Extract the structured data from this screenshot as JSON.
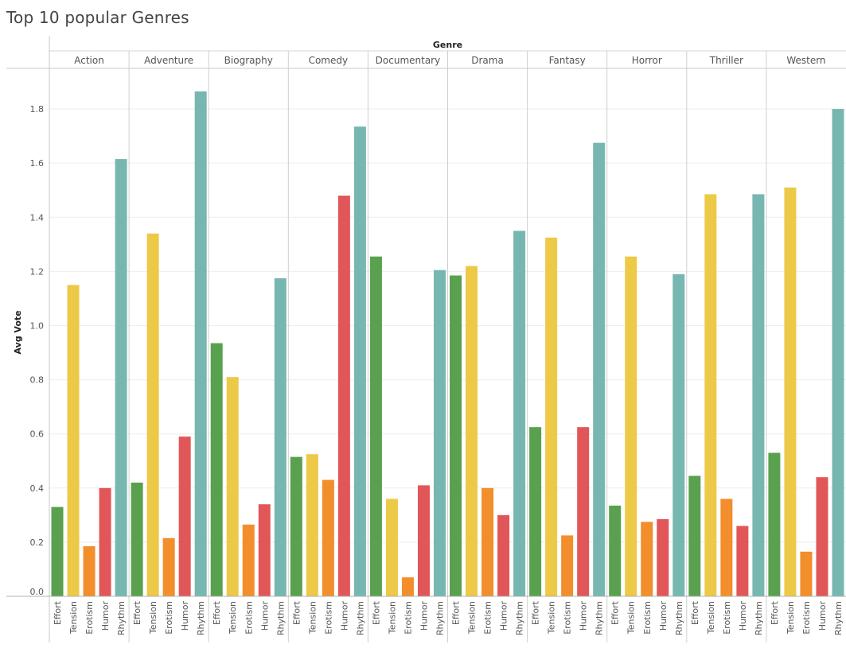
{
  "title": "Top 10 popular Genres",
  "chart_data": {
    "type": "bar",
    "title": "Top 10 popular Genres",
    "column_header": "Genre",
    "xlabel": "",
    "ylabel": "Avg Vote",
    "ylim": [
      0,
      1.95
    ],
    "yticks": [
      0.0,
      0.2,
      0.4,
      0.6,
      0.8,
      1.0,
      1.2,
      1.4,
      1.6,
      1.8
    ],
    "ytick_labels": [
      "0.0",
      "0.2",
      "0.4",
      "0.6",
      "0.8",
      "1.0",
      "1.2",
      "1.4",
      "1.6",
      "1.8"
    ],
    "grid": true,
    "genres": [
      "Action",
      "Adventure",
      "Biography",
      "Comedy",
      "Documentary",
      "Drama",
      "Fantasy",
      "Horror",
      "Thriller",
      "Western"
    ],
    "categories": [
      "Effort",
      "Tension",
      "Erotism",
      "Humor",
      "Rhythm"
    ],
    "colors": {
      "Effort": "#59A14F",
      "Tension": "#EDC948",
      "Erotism": "#F28E2B",
      "Humor": "#E15759",
      "Rhythm": "#76B7B2"
    },
    "series": [
      {
        "name": "Action",
        "values": [
          0.33,
          1.15,
          0.185,
          0.4,
          1.615
        ]
      },
      {
        "name": "Adventure",
        "values": [
          0.42,
          1.34,
          0.215,
          0.59,
          1.865
        ]
      },
      {
        "name": "Biography",
        "values": [
          0.935,
          0.81,
          0.265,
          0.34,
          1.175
        ]
      },
      {
        "name": "Comedy",
        "values": [
          0.515,
          0.525,
          0.43,
          1.48,
          1.735
        ]
      },
      {
        "name": "Documentary",
        "values": [
          1.255,
          0.36,
          0.07,
          0.41,
          1.205
        ]
      },
      {
        "name": "Drama",
        "values": [
          1.185,
          1.22,
          0.4,
          0.3,
          1.35
        ]
      },
      {
        "name": "Fantasy",
        "values": [
          0.625,
          1.325,
          0.225,
          0.625,
          1.675
        ]
      },
      {
        "name": "Horror",
        "values": [
          0.335,
          1.255,
          0.275,
          0.285,
          1.19
        ]
      },
      {
        "name": "Thriller",
        "values": [
          0.445,
          1.485,
          0.36,
          0.26,
          1.485
        ]
      },
      {
        "name": "Western",
        "values": [
          0.53,
          1.51,
          0.165,
          0.44,
          1.8
        ]
      }
    ]
  }
}
